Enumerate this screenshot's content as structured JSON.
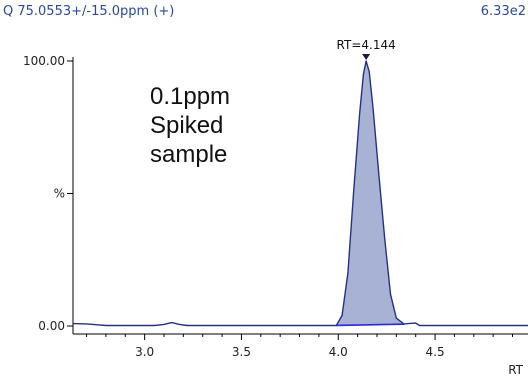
{
  "header": {
    "trace_label": "Q 75.0553+/-15.0ppm (+)",
    "intensity": "6.33e2"
  },
  "annotation": {
    "lines": [
      "0.1ppm",
      "Spiked",
      "sample"
    ]
  },
  "colors": {
    "peak_fill": "#a7b2d4",
    "peak_outline": "#26337a",
    "baseline": "#2a2ad8",
    "header_text": "#2b4a8f"
  },
  "chart_data": {
    "type": "area",
    "title": "Q 75.0553+/-15.0ppm (+)",
    "xlabel": "RT",
    "ylabel": "%",
    "xlim": [
      2.63,
      4.98
    ],
    "ylim": [
      0,
      100
    ],
    "y_ticks": [
      {
        "value": 100,
        "label": "100.00"
      },
      {
        "value": 50,
        "label": "%"
      },
      {
        "value": 0,
        "label": "0.00"
      }
    ],
    "x_ticks": [
      {
        "value": 3.0,
        "label": "3.0"
      },
      {
        "value": 3.5,
        "label": "3.5"
      },
      {
        "value": 4.0,
        "label": "4.0"
      },
      {
        "value": 4.5,
        "label": "4.5"
      }
    ],
    "peak_annotation": {
      "label": "RT=4.144",
      "x": 4.144,
      "y": 100
    },
    "series": [
      {
        "x": [
          2.63,
          2.7,
          2.75,
          2.8,
          3.05,
          3.1,
          3.14,
          3.18,
          3.22,
          3.99,
          4.02,
          4.05,
          4.08,
          4.11,
          4.13,
          4.144,
          4.16,
          4.18,
          4.21,
          4.24,
          4.27,
          4.3,
          4.34,
          4.36,
          4.4,
          4.42,
          4.98
        ],
        "y": [
          0.9,
          0.8,
          0.5,
          0.2,
          0.2,
          0.6,
          1.3,
          0.6,
          0.2,
          0.2,
          4,
          20,
          51,
          80,
          95,
          100,
          96,
          82,
          57,
          33,
          12,
          3,
          0.7,
          0.9,
          1.1,
          0.2,
          0.2
        ]
      }
    ]
  }
}
